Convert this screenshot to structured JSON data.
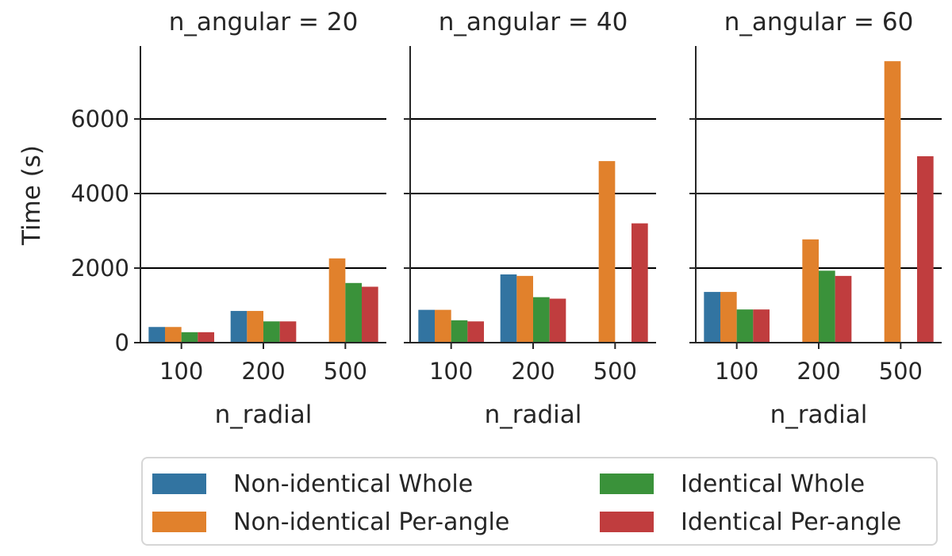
{
  "chart_data": {
    "type": "bar",
    "ylabel": "Time (s)",
    "ylim": [
      0,
      7900
    ],
    "yticks": [
      0,
      2000,
      4000,
      6000
    ],
    "ytick_labels": [
      "0",
      "2000",
      "4000",
      "6000"
    ],
    "grid": "horizontal",
    "legend_position": "bottom",
    "series_colors": [
      "#3274a1",
      "#e1812c",
      "#3a923a",
      "#c03d3e"
    ],
    "legend": [
      {
        "label": "Non-identical Whole",
        "color": "#3274a1"
      },
      {
        "label": "Non-identical Per-angle",
        "color": "#e1812c"
      },
      {
        "label": "Identical Whole",
        "color": "#3a923a"
      },
      {
        "label": "Identical Per-angle",
        "color": "#c03d3e"
      }
    ],
    "panels": [
      {
        "title": "n_angular = 20",
        "xlabel": "n_radial",
        "categories": [
          "100",
          "200",
          "500"
        ],
        "series": [
          {
            "name": "Non-identical Whole",
            "values": [
              420,
              850,
              null
            ]
          },
          {
            "name": "Non-identical Per-angle",
            "values": [
              420,
              850,
              2260
            ]
          },
          {
            "name": "Identical Whole",
            "values": [
              280,
              570,
              1600
            ]
          },
          {
            "name": "Identical Per-angle",
            "values": [
              280,
              570,
              1500
            ]
          }
        ]
      },
      {
        "title": "n_angular = 40",
        "xlabel": "n_radial",
        "categories": [
          "100",
          "200",
          "500"
        ],
        "series": [
          {
            "name": "Non-identical Whole",
            "values": [
              880,
              1830,
              null
            ]
          },
          {
            "name": "Non-identical Per-angle",
            "values": [
              880,
              1790,
              4870
            ]
          },
          {
            "name": "Identical Whole",
            "values": [
              600,
              1220,
              null
            ]
          },
          {
            "name": "Identical Per-angle",
            "values": [
              570,
              1180,
              3200
            ]
          }
        ]
      },
      {
        "title": "n_angular = 60",
        "xlabel": "n_radial",
        "categories": [
          "100",
          "200",
          "500"
        ],
        "series": [
          {
            "name": "Non-identical Whole",
            "values": [
              1360,
              null,
              null
            ]
          },
          {
            "name": "Non-identical Per-angle",
            "values": [
              1360,
              2770,
              7550
            ]
          },
          {
            "name": "Identical Whole",
            "values": [
              890,
              1930,
              null
            ]
          },
          {
            "name": "Identical Per-angle",
            "values": [
              890,
              1790,
              5000
            ]
          }
        ]
      }
    ]
  }
}
